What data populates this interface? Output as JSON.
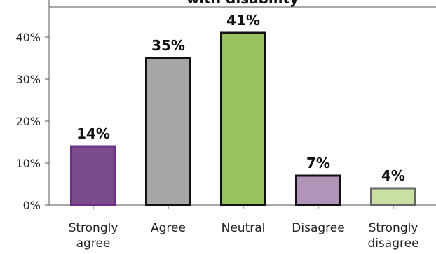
{
  "chart_data": {
    "type": "bar",
    "title": "with disability",
    "categories": [
      "Strongly agree",
      "Agree",
      "Neutral",
      "Disagree",
      "Strongly disagree"
    ],
    "category_lines": [
      [
        "Strongly",
        "agree"
      ],
      [
        "Agree"
      ],
      [
        "Neutral"
      ],
      [
        "Disagree"
      ],
      [
        "Strongly",
        "disagree"
      ]
    ],
    "values": [
      14,
      35,
      41,
      7,
      4
    ],
    "data_labels": [
      "14%",
      "35%",
      "41%",
      "7%",
      "4%"
    ],
    "fill_colors": [
      "#7b4a8c",
      "#a6a6a8",
      "#97c25d",
      "#b294b8",
      "#c9dfa4"
    ],
    "stroke_colors": [
      "#6d2f86",
      "#111111",
      "#111111",
      "#111111",
      "#666666"
    ],
    "ylim": [
      0,
      40
    ],
    "yticks": [
      0,
      10,
      20,
      30,
      40
    ],
    "ytick_labels": [
      "0%",
      "10%",
      "20%",
      "30%",
      "40%"
    ],
    "xlabel": "",
    "ylabel": "",
    "grid": false,
    "legend": "none"
  }
}
